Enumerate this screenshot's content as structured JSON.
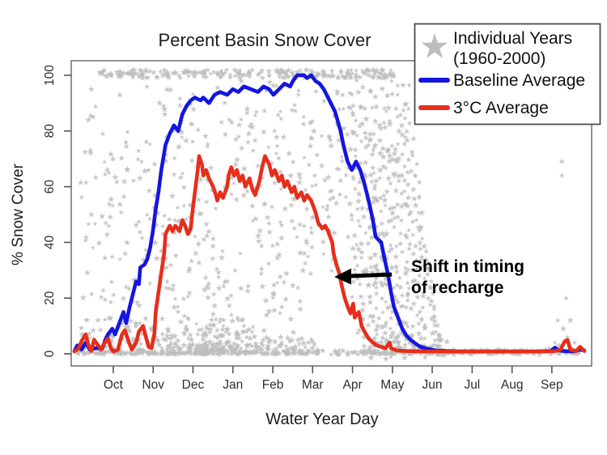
{
  "title": "Percent Basin Snow Cover",
  "x_axis": {
    "label": "Water Year Day"
  },
  "y_axis": {
    "label": "% Snow Cover"
  },
  "legend": {
    "items": [
      {
        "symbol": "star",
        "line1": "Individual Years",
        "line2": "(1960-2000)",
        "color": "#bdbdbd"
      },
      {
        "symbol": "line",
        "label": "Baseline Average",
        "color": "#1515e0"
      },
      {
        "symbol": "line",
        "label": "3°C Average",
        "color": "#e62e1b"
      }
    ]
  },
  "annotation": {
    "line1": "Shift in timing",
    "line2": "of recharge"
  },
  "colors": {
    "baseline_blue": "#1515e0",
    "warming_red": "#e62e1b",
    "star_gray": "#bdbdbd",
    "axis_gray": "#767676",
    "text_dark": "#1c1c1c"
  },
  "chart_data": {
    "type": "line+scatter",
    "title": "Percent Basin Snow Cover",
    "xlabel": "Water Year Day",
    "ylabel": "% Snow Cover",
    "ylim": [
      0,
      100
    ],
    "x_range_days": [
      1,
      365
    ],
    "y_ticks": [
      0,
      20,
      40,
      60,
      80,
      100
    ],
    "x_ticks": [
      {
        "day": 28.7,
        "label": "Oct"
      },
      {
        "day": 57.2,
        "label": "Nov"
      },
      {
        "day": 85.6,
        "label": "Dec"
      },
      {
        "day": 114.1,
        "label": "Jan"
      },
      {
        "day": 142.6,
        "label": "Feb"
      },
      {
        "day": 171.0,
        "label": "Mar"
      },
      {
        "day": 199.5,
        "label": "Apr"
      },
      {
        "day": 228.0,
        "label": "May"
      },
      {
        "day": 256.4,
        "label": "Jun"
      },
      {
        "day": 284.9,
        "label": "Jul"
      },
      {
        "day": 313.4,
        "label": "Aug"
      },
      {
        "day": 341.8,
        "label": "Sep"
      }
    ],
    "series": [
      {
        "name": "Baseline Average",
        "color": "#1515e0",
        "points": [
          [
            1,
            1
          ],
          [
            3,
            3
          ],
          [
            6,
            1.5
          ],
          [
            9,
            4
          ],
          [
            12,
            1.5
          ],
          [
            16,
            2
          ],
          [
            21,
            2
          ],
          [
            23,
            5
          ],
          [
            25,
            7
          ],
          [
            28,
            9
          ],
          [
            30,
            7
          ],
          [
            33,
            11
          ],
          [
            36,
            15
          ],
          [
            38,
            11
          ],
          [
            40,
            16
          ],
          [
            43,
            22
          ],
          [
            45,
            26
          ],
          [
            47,
            25
          ],
          [
            48,
            31
          ],
          [
            51,
            32
          ],
          [
            53,
            34
          ],
          [
            55,
            38
          ],
          [
            57,
            44
          ],
          [
            59,
            52
          ],
          [
            61,
            58
          ],
          [
            63,
            66
          ],
          [
            66,
            75
          ],
          [
            69,
            79
          ],
          [
            72,
            82
          ],
          [
            75,
            80
          ],
          [
            78,
            86
          ],
          [
            81,
            89
          ],
          [
            84,
            91
          ],
          [
            87,
            92
          ],
          [
            91,
            91
          ],
          [
            93,
            92
          ],
          [
            97,
            90
          ],
          [
            101,
            93
          ],
          [
            105,
            94
          ],
          [
            110,
            93
          ],
          [
            114,
            95
          ],
          [
            118,
            94
          ],
          [
            122,
            96
          ],
          [
            127,
            95
          ],
          [
            132,
            94
          ],
          [
            136,
            96
          ],
          [
            140,
            95
          ],
          [
            143,
            93
          ],
          [
            147,
            95
          ],
          [
            151,
            97
          ],
          [
            155,
            96
          ],
          [
            157,
            98
          ],
          [
            160,
            100
          ],
          [
            165,
            100
          ],
          [
            167,
            99
          ],
          [
            170,
            100
          ],
          [
            173,
            98
          ],
          [
            176,
            97
          ],
          [
            179,
            95
          ],
          [
            182,
            92
          ],
          [
            187,
            87
          ],
          [
            191,
            80
          ],
          [
            193,
            75
          ],
          [
            196,
            69
          ],
          [
            199,
            66
          ],
          [
            202,
            69
          ],
          [
            205,
            66
          ],
          [
            208,
            61
          ],
          [
            211,
            55
          ],
          [
            214,
            48
          ],
          [
            216,
            42
          ],
          [
            218,
            41
          ],
          [
            220,
            40
          ],
          [
            222,
            35
          ],
          [
            225,
            28
          ],
          [
            227,
            22
          ],
          [
            229,
            17
          ],
          [
            232,
            13
          ],
          [
            235,
            9
          ],
          [
            238,
            6.5
          ],
          [
            241,
            5
          ],
          [
            245,
            3.5
          ],
          [
            248,
            2.5
          ],
          [
            253,
            1.8
          ],
          [
            259,
            1.2
          ],
          [
            266,
            1
          ],
          [
            277,
            0.8
          ],
          [
            295,
            0.8
          ],
          [
            312,
            0.8
          ],
          [
            329,
            0.8
          ],
          [
            341,
            1
          ],
          [
            344,
            2.2
          ],
          [
            347,
            1.2
          ],
          [
            352,
            0.9
          ],
          [
            358,
            0.9
          ],
          [
            362,
            1.5
          ],
          [
            365,
            1.2
          ]
        ]
      },
      {
        "name": "3°C Average",
        "color": "#e62e1b",
        "points": [
          [
            1,
            0.8
          ],
          [
            4,
            2
          ],
          [
            6,
            4.5
          ],
          [
            9,
            7
          ],
          [
            11,
            3
          ],
          [
            13,
            1
          ],
          [
            15,
            5
          ],
          [
            18,
            3
          ],
          [
            20,
            1.5
          ],
          [
            22,
            3.5
          ],
          [
            25,
            5.5
          ],
          [
            27,
            2
          ],
          [
            29,
            0.8
          ],
          [
            32,
            1.5
          ],
          [
            35,
            7
          ],
          [
            37,
            8.5
          ],
          [
            40,
            4
          ],
          [
            42,
            1.5
          ],
          [
            45,
            4
          ],
          [
            47,
            8
          ],
          [
            50,
            10
          ],
          [
            52,
            6
          ],
          [
            54,
            2.5
          ],
          [
            56,
            2
          ],
          [
            58,
            7
          ],
          [
            59,
            15
          ],
          [
            61,
            22
          ],
          [
            63,
            29
          ],
          [
            65,
            36
          ],
          [
            66,
            43
          ],
          [
            69,
            46
          ],
          [
            71,
            44
          ],
          [
            73,
            46
          ],
          [
            76,
            44
          ],
          [
            78,
            48
          ],
          [
            80,
            46
          ],
          [
            82,
            43
          ],
          [
            84,
            45
          ],
          [
            85,
            50
          ],
          [
            87,
            58
          ],
          [
            89,
            66
          ],
          [
            90,
            71
          ],
          [
            92,
            68
          ],
          [
            93,
            64
          ],
          [
            95,
            66
          ],
          [
            97,
            63
          ],
          [
            100,
            60
          ],
          [
            102,
            57
          ],
          [
            103,
            55
          ],
          [
            105,
            58
          ],
          [
            107,
            56
          ],
          [
            110,
            60
          ],
          [
            111,
            64
          ],
          [
            113,
            67
          ],
          [
            115,
            64
          ],
          [
            117,
            66
          ],
          [
            119,
            62
          ],
          [
            121,
            64
          ],
          [
            123,
            60
          ],
          [
            126,
            63
          ],
          [
            128,
            59
          ],
          [
            130,
            57
          ],
          [
            133,
            62
          ],
          [
            135,
            67
          ],
          [
            137,
            71
          ],
          [
            140,
            68
          ],
          [
            142,
            64
          ],
          [
            144,
            66
          ],
          [
            147,
            62
          ],
          [
            149,
            64
          ],
          [
            151,
            60
          ],
          [
            153,
            62
          ],
          [
            156,
            58
          ],
          [
            158,
            60
          ],
          [
            160,
            56
          ],
          [
            163,
            58
          ],
          [
            165,
            55
          ],
          [
            167,
            57
          ],
          [
            170,
            55
          ],
          [
            173,
            51
          ],
          [
            175,
            47
          ],
          [
            178,
            45
          ],
          [
            180,
            46
          ],
          [
            182,
            44
          ],
          [
            185,
            40
          ],
          [
            186,
            36
          ],
          [
            188,
            32
          ],
          [
            190,
            29
          ],
          [
            192,
            24
          ],
          [
            194,
            20
          ],
          [
            196,
            17
          ],
          [
            198,
            14.5
          ],
          [
            200,
            18
          ],
          [
            201,
            13
          ],
          [
            204,
            15
          ],
          [
            206,
            10
          ],
          [
            208,
            8
          ],
          [
            211,
            5.5
          ],
          [
            214,
            4
          ],
          [
            217,
            3
          ],
          [
            220,
            2.5
          ],
          [
            223,
            2
          ],
          [
            226,
            4
          ],
          [
            227,
            2
          ],
          [
            231,
            1.2
          ],
          [
            237,
            1
          ],
          [
            248,
            0.9
          ],
          [
            271,
            0.8
          ],
          [
            295,
            0.8
          ],
          [
            318,
            0.8
          ],
          [
            335,
            0.8
          ],
          [
            344,
            1
          ],
          [
            348,
            1.5
          ],
          [
            351,
            4.5
          ],
          [
            353,
            5
          ],
          [
            355,
            1.5
          ],
          [
            359,
            1
          ],
          [
            362,
            2.5
          ],
          [
            365,
            1
          ]
        ]
      }
    ],
    "scatter": {
      "name": "Individual Years (1960-2000)",
      "color": "#bdbdbd",
      "seed": 1234,
      "clusters": [
        {
          "days": [
            18,
            230
          ],
          "values": [
            99,
            102
          ],
          "n": 220,
          "bias": 1
        },
        {
          "days": [
            2,
            362
          ],
          "values": [
            -0.3,
            1.3
          ],
          "n": 280,
          "bias": 1
        },
        {
          "days": [
            2,
            100
          ],
          "values": [
            0,
            13
          ],
          "n": 200,
          "bias": 2.2
        },
        {
          "days": [
            100,
            140
          ],
          "values": [
            0,
            10
          ],
          "n": 80,
          "bias": 2.2
        },
        {
          "days": [
            140,
            175
          ],
          "values": [
            0,
            6
          ],
          "n": 50,
          "bias": 2
        },
        {
          "days": [
            88,
            126
          ],
          "values": [
            1,
            13
          ],
          "n": 60,
          "bias": 1.6
        },
        {
          "days": [
            5,
            105
          ],
          "values": [
            13,
            97
          ],
          "n": 180,
          "bias": 1
        },
        {
          "days": [
            105,
            165
          ],
          "values": [
            12,
            98
          ],
          "n": 95,
          "bias": 1
        },
        {
          "days": [
            165,
            195
          ],
          "values": [
            25,
            98
          ],
          "n": 45,
          "bias": 1
        },
        {
          "days": [
            196,
            240
          ],
          "values": [
            5,
            95
          ],
          "n": 110,
          "bias": 1.4
        },
        {
          "days": [
            205,
            268
          ],
          "values": [
            0,
            7
          ],
          "n": 90,
          "bias": 1.8
        },
        {
          "days": [
            268,
            330
          ],
          "values": [
            0,
            1.5
          ],
          "n": 35,
          "bias": 1
        }
      ],
      "streaks": [
        [
          186,
          100,
          212,
          0,
          22
        ],
        [
          190,
          100,
          218,
          0,
          22
        ],
        [
          195,
          100,
          222,
          0,
          24
        ],
        [
          199,
          100,
          226,
          0,
          24
        ],
        [
          203,
          100,
          230,
          0,
          24
        ],
        [
          207,
          100,
          234,
          0,
          26
        ],
        [
          211,
          100,
          238,
          0,
          24
        ],
        [
          215,
          100,
          241,
          0,
          24
        ],
        [
          219,
          100,
          245,
          0,
          24
        ],
        [
          223,
          100,
          249,
          0,
          26
        ],
        [
          227,
          99,
          252,
          0,
          24
        ],
        [
          231,
          98,
          255,
          0,
          24
        ],
        [
          235,
          97,
          258,
          0,
          22
        ],
        [
          239,
          95,
          261,
          0,
          22
        ],
        [
          243,
          70,
          263,
          0,
          14
        ],
        [
          247,
          45,
          265,
          0,
          12
        ],
        [
          58,
          46,
          86,
          0,
          15
        ],
        [
          74,
          70,
          106,
          4,
          16
        ],
        [
          90,
          56,
          120,
          2,
          15
        ],
        [
          106,
          98,
          148,
          16,
          15
        ],
        [
          120,
          96,
          158,
          8,
          14
        ],
        [
          132,
          88,
          170,
          28,
          12
        ],
        [
          148,
          84,
          178,
          40,
          10
        ],
        [
          162,
          92,
          186,
          55,
          9
        ]
      ],
      "points": [
        [
          349,
          69
        ],
        [
          349,
          64
        ],
        [
          352,
          20
        ],
        [
          346,
          12
        ],
        [
          355,
          12
        ],
        [
          350,
          9
        ],
        [
          353,
          6
        ],
        [
          344,
          4
        ],
        [
          347,
          3
        ],
        [
          340,
          2
        ],
        [
          356,
          2
        ],
        [
          358,
          4
        ],
        [
          13,
          95
        ]
      ]
    }
  }
}
